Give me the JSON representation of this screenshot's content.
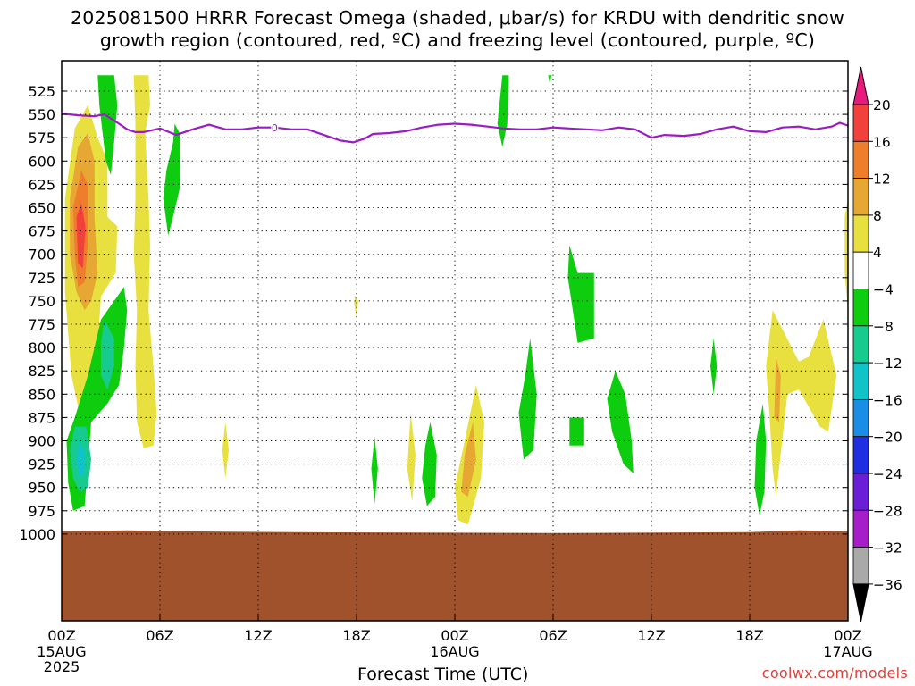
{
  "title_line1": "2025081500 HRRR Forecast Omega (shaded, μbar/s) for KRDU with dendritic snow",
  "title_line2": "growth region (contoured, red, ºC) and freezing level (contoured, purple, ºC)",
  "xlabel": "Forecast Time (UTC)",
  "credit": "coolwx.com/models",
  "chart_data": {
    "type": "heatmap",
    "title": "2025081500 HRRR Forecast Omega (shaded, μbar/s) for KRDU with dendritic snow growth region (contoured, red, ºC) and freezing level (contoured, purple, ºC)",
    "xlabel": "Forecast Time (UTC)",
    "ylabel": "",
    "x_range_hours": [
      0,
      48
    ],
    "x_ticks": [
      {
        "hour": 0,
        "label": "00Z",
        "sub": [
          "15AUG",
          "2025"
        ]
      },
      {
        "hour": 6,
        "label": "06Z"
      },
      {
        "hour": 12,
        "label": "12Z"
      },
      {
        "hour": 18,
        "label": "18Z"
      },
      {
        "hour": 24,
        "label": "00Z",
        "sub": [
          "16AUG"
        ]
      },
      {
        "hour": 30,
        "label": "06Z"
      },
      {
        "hour": 36,
        "label": "12Z"
      },
      {
        "hour": 42,
        "label": "18Z"
      },
      {
        "hour": 48,
        "label": "00Z",
        "sub": [
          "17AUG"
        ]
      }
    ],
    "y_range_hPa": [
      1005,
      508
    ],
    "y_ticks": [
      525,
      550,
      575,
      600,
      625,
      650,
      675,
      700,
      725,
      750,
      775,
      800,
      825,
      850,
      875,
      900,
      925,
      950,
      975,
      1000
    ],
    "grid": true,
    "colorbar": {
      "labels": [
        "20",
        "16",
        "12",
        "8",
        "4",
        "−4",
        "−8",
        "−12",
        "−16",
        "−20",
        "−24",
        "−28",
        "−32",
        "−36"
      ],
      "colors": [
        "#ea1a7c",
        "#f2413b",
        "#ef7e2c",
        "#e6a733",
        "#e8e03e",
        "#ffffff",
        "#0ecd0e",
        "#16cb8d",
        "#10c3c9",
        "#1a8de6",
        "#1f2ee0",
        "#6a1fd6",
        "#a51ec9",
        "#a9a9a9",
        "#000000"
      ]
    },
    "freezing_level": {
      "color": "#9b1cc6",
      "label": "0",
      "points": [
        [
          0,
          549
        ],
        [
          1,
          551
        ],
        [
          2,
          552
        ],
        [
          2.6,
          550
        ],
        [
          3.5,
          560
        ],
        [
          4,
          566
        ],
        [
          4.5,
          569
        ],
        [
          5,
          569
        ],
        [
          6,
          565
        ],
        [
          7,
          572
        ],
        [
          8,
          566
        ],
        [
          9,
          561
        ],
        [
          10,
          566
        ],
        [
          11,
          566
        ],
        [
          12,
          564
        ],
        [
          13,
          564
        ],
        [
          14,
          566
        ],
        [
          15,
          566
        ],
        [
          16,
          572
        ],
        [
          17,
          578
        ],
        [
          17.8,
          580
        ],
        [
          18.5,
          576
        ],
        [
          19,
          571
        ],
        [
          20,
          570
        ],
        [
          21,
          568
        ],
        [
          22,
          564
        ],
        [
          23,
          561
        ],
        [
          24,
          560
        ],
        [
          25,
          561
        ],
        [
          26,
          563
        ],
        [
          27,
          565
        ],
        [
          28,
          566
        ],
        [
          29,
          566
        ],
        [
          30,
          564
        ],
        [
          31,
          565
        ],
        [
          32,
          566
        ],
        [
          33,
          567
        ],
        [
          34,
          564
        ],
        [
          35,
          566
        ],
        [
          36,
          575
        ],
        [
          36.8,
          572
        ],
        [
          38,
          573
        ],
        [
          39,
          571
        ],
        [
          40,
          566
        ],
        [
          41,
          563
        ],
        [
          42,
          568
        ],
        [
          43,
          569
        ],
        [
          44,
          564
        ],
        [
          45,
          563
        ],
        [
          46,
          566
        ],
        [
          47,
          563
        ],
        [
          47.5,
          559
        ],
        [
          48,
          562
        ]
      ]
    },
    "omega_regions": [
      {
        "value_band": "4 to 8",
        "color": "#e8e03e",
        "points": [
          [
            0.2,
            640
          ],
          [
            0.8,
            565
          ],
          [
            1.6,
            540
          ],
          [
            2.2,
            575
          ],
          [
            2.8,
            600
          ],
          [
            2.8,
            660
          ],
          [
            3.4,
            670
          ],
          [
            3.3,
            720
          ],
          [
            2.4,
            745
          ],
          [
            2.2,
            800
          ],
          [
            1.8,
            870
          ],
          [
            1.2,
            880
          ],
          [
            0.6,
            830
          ],
          [
            0.2,
            740
          ]
        ]
      },
      {
        "value_band": "8 to 12",
        "color": "#e6a733",
        "points": [
          [
            0.5,
            640
          ],
          [
            1,
            585
          ],
          [
            1.6,
            570
          ],
          [
            2,
            600
          ],
          [
            2,
            660
          ],
          [
            2.2,
            720
          ],
          [
            1.8,
            750
          ],
          [
            1.4,
            760
          ],
          [
            0.9,
            740
          ],
          [
            0.5,
            700
          ]
        ]
      },
      {
        "value_band": "12 to 16",
        "color": "#ef7e2c",
        "points": [
          [
            0.7,
            650
          ],
          [
            1.2,
            610
          ],
          [
            1.6,
            625
          ],
          [
            1.6,
            690
          ],
          [
            1.4,
            730
          ],
          [
            1,
            735
          ],
          [
            0.8,
            700
          ]
        ]
      },
      {
        "value_band": "16 to 20",
        "color": "#f2413b",
        "points": [
          [
            0.9,
            660
          ],
          [
            1.2,
            645
          ],
          [
            1.45,
            670
          ],
          [
            1.3,
            715
          ],
          [
            1,
            710
          ]
        ]
      },
      {
        "value_band": "4 to 8",
        "color": "#e8e03e",
        "points": [
          [
            4.4,
            508
          ],
          [
            5.3,
            508
          ],
          [
            5.4,
            540
          ],
          [
            5.1,
            570
          ],
          [
            5.3,
            640
          ],
          [
            5.4,
            690
          ],
          [
            5.3,
            760
          ],
          [
            5.6,
            820
          ],
          [
            5.8,
            870
          ],
          [
            5.6,
            905
          ],
          [
            5,
            908
          ],
          [
            4.6,
            880
          ],
          [
            4.5,
            820
          ],
          [
            4.6,
            760
          ],
          [
            4.4,
            700
          ],
          [
            4.5,
            640
          ],
          [
            4.5,
            560
          ]
        ]
      },
      {
        "value_band": "4 to 8",
        "color": "#e8e03e",
        "points": [
          [
            10,
            880
          ],
          [
            10.2,
            910
          ],
          [
            10,
            940
          ],
          [
            9.8,
            910
          ]
        ]
      },
      {
        "value_band": "4 to 8",
        "color": "#e8e03e",
        "points": [
          [
            17.9,
            745
          ],
          [
            18.1,
            750
          ],
          [
            18,
            768
          ],
          [
            17.85,
            752
          ]
        ]
      },
      {
        "value_band": "4 to 8",
        "color": "#e8e03e",
        "points": [
          [
            21.3,
            870
          ],
          [
            21.6,
            915
          ],
          [
            21.4,
            965
          ],
          [
            21.1,
            930
          ]
        ]
      },
      {
        "value_band": "4 to 8",
        "color": "#e8e03e",
        "points": [
          [
            25.3,
            840
          ],
          [
            25.8,
            880
          ],
          [
            25.6,
            940
          ],
          [
            24.8,
            990
          ],
          [
            24.2,
            985
          ],
          [
            24,
            950
          ],
          [
            24.6,
            900
          ]
        ]
      },
      {
        "value_band": "8 to 12",
        "color": "#e6a733",
        "points": [
          [
            25.1,
            880
          ],
          [
            25.3,
            920
          ],
          [
            24.8,
            960
          ],
          [
            24.4,
            955
          ],
          [
            24.6,
            915
          ]
        ]
      },
      {
        "value_band": "4 to 8",
        "color": "#e8e03e",
        "points": [
          [
            43.4,
            760
          ],
          [
            45,
            815
          ],
          [
            45.6,
            810
          ],
          [
            46.5,
            770
          ],
          [
            47.3,
            830
          ],
          [
            46.8,
            890
          ],
          [
            46.3,
            885
          ],
          [
            45,
            845
          ],
          [
            44.3,
            850
          ],
          [
            43.6,
            960
          ],
          [
            43.4,
            930
          ],
          [
            43.2,
            870
          ],
          [
            43,
            820
          ]
        ]
      },
      {
        "value_band": "8 to 12",
        "color": "#e6a733",
        "points": [
          [
            43.6,
            810
          ],
          [
            43.9,
            830
          ],
          [
            43.8,
            880
          ],
          [
            43.5,
            875
          ]
        ]
      },
      {
        "value_band": "4 to 8",
        "color": "#e8e03e",
        "points": [
          [
            47.8,
            660
          ],
          [
            48,
            640
          ],
          [
            48,
            760
          ],
          [
            47.8,
            720
          ]
        ]
      },
      {
        "value_band": "-4 to -8",
        "color": "#0ecd0e",
        "points": [
          [
            2.2,
            508
          ],
          [
            3.2,
            508
          ],
          [
            3.4,
            540
          ],
          [
            3.2,
            580
          ],
          [
            3,
            615
          ],
          [
            2.7,
            600
          ],
          [
            2.5,
            570
          ],
          [
            2.3,
            540
          ]
        ]
      },
      {
        "value_band": "-4 to -8",
        "color": "#0ecd0e",
        "points": [
          [
            6.9,
            560
          ],
          [
            7.2,
            570
          ],
          [
            7.2,
            630
          ],
          [
            6.8,
            660
          ],
          [
            6.5,
            680
          ],
          [
            6.2,
            640
          ],
          [
            6.4,
            610
          ],
          [
            6.8,
            580
          ]
        ]
      },
      {
        "value_band": "-4 to -8",
        "color": "#0ecd0e",
        "points": [
          [
            3.8,
            735
          ],
          [
            4,
            760
          ],
          [
            3.8,
            800
          ],
          [
            3.5,
            840
          ],
          [
            2.8,
            860
          ],
          [
            1.8,
            880
          ],
          [
            1.4,
            970
          ],
          [
            0.7,
            975
          ],
          [
            0.4,
            945
          ],
          [
            0.3,
            900
          ],
          [
            0.8,
            875
          ],
          [
            1.6,
            830
          ],
          [
            2.4,
            770
          ],
          [
            3.2,
            750
          ]
        ]
      },
      {
        "value_band": "-8 to -12",
        "color": "#16cb8d",
        "points": [
          [
            2.6,
            770
          ],
          [
            3.2,
            790
          ],
          [
            3.2,
            820
          ],
          [
            2.8,
            845
          ],
          [
            2.4,
            830
          ],
          [
            2.4,
            795
          ]
        ]
      },
      {
        "value_band": "-8 to -12",
        "color": "#16cb8d",
        "points": [
          [
            0.8,
            885
          ],
          [
            1.5,
            885
          ],
          [
            1.8,
            920
          ],
          [
            1.6,
            950
          ],
          [
            1.1,
            955
          ],
          [
            0.7,
            940
          ],
          [
            0.5,
            910
          ]
        ]
      },
      {
        "value_band": "-12 to -16",
        "color": "#10c3c9",
        "points": [
          [
            1,
            900
          ],
          [
            1.4,
            910
          ],
          [
            1.4,
            935
          ],
          [
            1.1,
            940
          ],
          [
            0.9,
            925
          ]
        ]
      },
      {
        "value_band": "-4 to -8",
        "color": "#0ecd0e",
        "points": [
          [
            19.1,
            895
          ],
          [
            19.3,
            930
          ],
          [
            19.1,
            968
          ],
          [
            18.9,
            930
          ]
        ]
      },
      {
        "value_band": "-4 to -8",
        "color": "#0ecd0e",
        "points": [
          [
            22.5,
            880
          ],
          [
            22.9,
            915
          ],
          [
            22.8,
            960
          ],
          [
            22.3,
            970
          ],
          [
            22,
            940
          ],
          [
            22.2,
            905
          ]
        ]
      },
      {
        "value_band": "-4 to -8",
        "color": "#0ecd0e",
        "points": [
          [
            26.9,
            508
          ],
          [
            27.3,
            508
          ],
          [
            27.2,
            560
          ],
          [
            26.9,
            585
          ],
          [
            26.6,
            560
          ]
        ]
      },
      {
        "value_band": "-4 to -8",
        "color": "#0ecd0e",
        "points": [
          [
            28.6,
            790
          ],
          [
            29,
            850
          ],
          [
            28.8,
            910
          ],
          [
            28.2,
            920
          ],
          [
            27.9,
            870
          ],
          [
            28.3,
            830
          ]
        ]
      },
      {
        "value_band": "-4 to -8",
        "color": "#0ecd0e",
        "points": [
          [
            29.7,
            508
          ],
          [
            29.9,
            508
          ],
          [
            29.8,
            518
          ]
        ]
      },
      {
        "value_band": "-4 to -8",
        "color": "#0ecd0e",
        "points": [
          [
            31,
            690
          ],
          [
            31.5,
            720
          ],
          [
            32.5,
            720
          ],
          [
            32.5,
            790
          ],
          [
            31.5,
            795
          ],
          [
            31.2,
            760
          ],
          [
            30.9,
            725
          ]
        ]
      },
      {
        "value_band": "-4 to -8",
        "color": "#0ecd0e",
        "points": [
          [
            31,
            875
          ],
          [
            31.9,
            875
          ],
          [
            31.9,
            905
          ],
          [
            31,
            905
          ]
        ]
      },
      {
        "value_band": "-4 to -8",
        "color": "#0ecd0e",
        "points": [
          [
            33.8,
            825
          ],
          [
            34.4,
            850
          ],
          [
            34.8,
            900
          ],
          [
            34.9,
            935
          ],
          [
            34.3,
            925
          ],
          [
            33.6,
            890
          ],
          [
            33.3,
            855
          ]
        ]
      },
      {
        "value_band": "-4 to -8",
        "color": "#0ecd0e",
        "points": [
          [
            39.8,
            790
          ],
          [
            40,
            820
          ],
          [
            39.8,
            850
          ],
          [
            39.6,
            820
          ]
        ]
      },
      {
        "value_band": "-4 to -8",
        "color": "#0ecd0e",
        "points": [
          [
            42.8,
            860
          ],
          [
            43,
            900
          ],
          [
            42.9,
            955
          ],
          [
            42.6,
            980
          ],
          [
            42.3,
            950
          ],
          [
            42.4,
            900
          ]
        ]
      }
    ],
    "surface_band": {
      "color": "#a0522d",
      "pressure_top": 997
    }
  }
}
